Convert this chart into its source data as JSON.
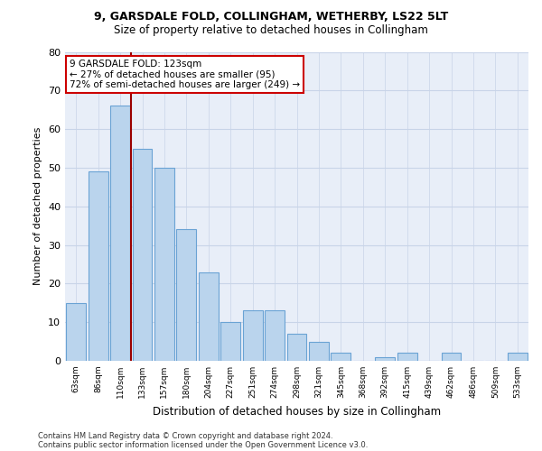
{
  "title1": "9, GARSDALE FOLD, COLLINGHAM, WETHERBY, LS22 5LT",
  "title2": "Size of property relative to detached houses in Collingham",
  "xlabel": "Distribution of detached houses by size in Collingham",
  "ylabel": "Number of detached properties",
  "categories": [
    "63sqm",
    "86sqm",
    "110sqm",
    "133sqm",
    "157sqm",
    "180sqm",
    "204sqm",
    "227sqm",
    "251sqm",
    "274sqm",
    "298sqm",
    "321sqm",
    "345sqm",
    "368sqm",
    "392sqm",
    "415sqm",
    "439sqm",
    "462sqm",
    "486sqm",
    "509sqm",
    "533sqm"
  ],
  "values": [
    15,
    49,
    66,
    55,
    50,
    34,
    23,
    10,
    13,
    13,
    7,
    5,
    2,
    0,
    1,
    2,
    0,
    2,
    0,
    0,
    2
  ],
  "bar_color": "#bad4ed",
  "bar_edge_color": "#6aa3d4",
  "highlight_bar_index": 2,
  "highlight_line_color": "#9b0000",
  "annotation_text": "9 GARSDALE FOLD: 123sqm\n← 27% of detached houses are smaller (95)\n72% of semi-detached houses are larger (249) →",
  "annotation_box_color": "#ffffff",
  "annotation_box_edge": "#cc0000",
  "grid_color": "#c8d4e8",
  "bg_color": "#e8eef8",
  "ylim": [
    0,
    80
  ],
  "yticks": [
    0,
    10,
    20,
    30,
    40,
    50,
    60,
    70,
    80
  ],
  "footnote1": "Contains HM Land Registry data © Crown copyright and database right 2024.",
  "footnote2": "Contains public sector information licensed under the Open Government Licence v3.0."
}
